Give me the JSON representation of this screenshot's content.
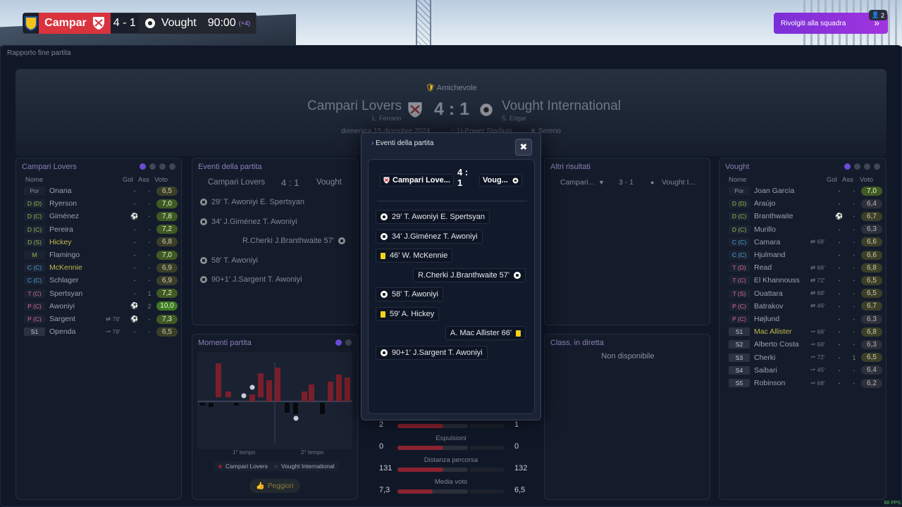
{
  "scorebar": {
    "home": "Campar",
    "score": "4 - 1",
    "away": "Vought",
    "time": "90:00",
    "added": "(+4)"
  },
  "top_button": {
    "label": "Rivolgiti alla squadra",
    "badge": "2"
  },
  "breadcrumb": "Rapporto fine partita",
  "header": {
    "competition": "Amichevole",
    "home_team": "Campari Lovers",
    "home_coach": "L. Ferrario",
    "away_team": "Vought International",
    "away_coach": "S. Edgar",
    "score": "4 : 1",
    "date": "domenica 15 dicembre 2024",
    "stadium": "U-Power Stadium",
    "weather": "Sereno"
  },
  "left_roster": {
    "title": "Campari Lovers",
    "cols": {
      "name": "Nome",
      "gol": "Gol",
      "ass": "Ass",
      "vote": "Voto"
    },
    "players": [
      {
        "pos": "Por",
        "name": "Onana",
        "sub": "",
        "gol": "-",
        "ass": "-",
        "vote": "6,5"
      },
      {
        "pos": "D (D)",
        "name": "Ryerson",
        "sub": "",
        "gol": "-",
        "ass": "-",
        "vote": "7,0"
      },
      {
        "pos": "D (C)",
        "name": "Giménez",
        "sub": "",
        "gol": "⚽",
        "ass": "-",
        "vote": "7,8"
      },
      {
        "pos": "D (C)",
        "name": "Pereira",
        "sub": "",
        "gol": "-",
        "ass": "-",
        "vote": "7,2"
      },
      {
        "pos": "D (S)",
        "name": "Hickey",
        "sub": "",
        "gol": "-",
        "ass": "-",
        "vote": "6,8"
      },
      {
        "pos": "M",
        "name": "Flamingo",
        "sub": "",
        "gol": "-",
        "ass": "-",
        "vote": "7,0"
      },
      {
        "pos": "C (C)",
        "name": "McKennie",
        "sub": "",
        "gol": "-",
        "ass": "-",
        "vote": "6,9"
      },
      {
        "pos": "C (C)",
        "name": "Schlager",
        "sub": "",
        "gol": "-",
        "ass": "-",
        "vote": "6,9"
      },
      {
        "pos": "T (C)",
        "name": "Spertsyan",
        "sub": "",
        "gol": "-",
        "ass": "1",
        "vote": "7,2"
      },
      {
        "pos": "P (C)",
        "name": "Awoniyi",
        "sub": "",
        "gol": "⚽",
        "ass": "2",
        "vote": "10,0"
      },
      {
        "pos": "P (C)",
        "name": "Sargent",
        "sub": "⇄ 78'",
        "gol": "⚽",
        "ass": "-",
        "vote": "7,3"
      },
      {
        "pos": "S1",
        "name": "Openda",
        "sub": "⇀ 78'",
        "gol": "-",
        "ass": "-",
        "vote": "6,5"
      }
    ]
  },
  "right_roster": {
    "title": "Vought",
    "cols": {
      "name": "Nome",
      "gol": "Gol",
      "ass": "Ass",
      "vote": "Voto"
    },
    "players": [
      {
        "pos": "Por",
        "name": "Joan García",
        "sub": "",
        "gol": "-",
        "ass": "-",
        "vote": "7,0"
      },
      {
        "pos": "D (D)",
        "name": "Araújo",
        "sub": "",
        "gol": "-",
        "ass": "-",
        "vote": "6,4"
      },
      {
        "pos": "D (C)",
        "name": "Branthwaite",
        "sub": "",
        "gol": "⚽",
        "ass": "-",
        "vote": "6,7"
      },
      {
        "pos": "D (C)",
        "name": "Murillo",
        "sub": "",
        "gol": "-",
        "ass": "-",
        "vote": "6,3"
      },
      {
        "pos": "C (C)",
        "name": "Camara",
        "sub": "⇄ 68'",
        "gol": "-",
        "ass": "-",
        "vote": "6,6"
      },
      {
        "pos": "C (C)",
        "name": "Hjulmand",
        "sub": "",
        "gol": "-",
        "ass": "-",
        "vote": "6,6"
      },
      {
        "pos": "T (D)",
        "name": "Read",
        "sub": "⇄ 68'",
        "gol": "-",
        "ass": "-",
        "vote": "6,8"
      },
      {
        "pos": "T (C)",
        "name": "El Khannouss",
        "sub": "⇄ 72'",
        "gol": "-",
        "ass": "-",
        "vote": "6,5"
      },
      {
        "pos": "T (S)",
        "name": "Ouattara",
        "sub": "⇄ 68'",
        "gol": "-",
        "ass": "-",
        "vote": "6,5"
      },
      {
        "pos": "P (C)",
        "name": "Batrakov",
        "sub": "⇄ 46'",
        "gol": "-",
        "ass": "-",
        "vote": "6,7"
      },
      {
        "pos": "P (C)",
        "name": "Højlund",
        "sub": "",
        "gol": "-",
        "ass": "-",
        "vote": "6,3"
      },
      {
        "pos": "S1",
        "name": "Mac Allister",
        "sub": "⇀ 68'",
        "gol": "-",
        "ass": "-",
        "vote": "6,8"
      },
      {
        "pos": "S2",
        "name": "Alberto Costa",
        "sub": "⇀ 68'",
        "gol": "-",
        "ass": "-",
        "vote": "6,3"
      },
      {
        "pos": "S3",
        "name": "Cherki",
        "sub": "⇀ 72'",
        "gol": "-",
        "ass": "1",
        "vote": "6,5"
      },
      {
        "pos": "S4",
        "name": "Saibari",
        "sub": "⇀ 45'",
        "gol": "-",
        "ass": "-",
        "vote": "6,4"
      },
      {
        "pos": "S5",
        "name": "Robinson",
        "sub": "⇀ 68'",
        "gol": "-",
        "ass": "-",
        "vote": "6,2"
      }
    ]
  },
  "events_panel": {
    "title": "Eventi della partita",
    "home": "Campari Lovers",
    "score": "4 : 1",
    "away": "Vought",
    "events": [
      {
        "side": "home",
        "text": "29' T. Awoniyi E. Spertsyan"
      },
      {
        "side": "home",
        "text": "34' J.Giménez T. Awoniyi"
      },
      {
        "side": "away",
        "text": "R.Cherki J.Branthwaite 57'"
      },
      {
        "side": "home",
        "text": "58' T. Awoniyi"
      },
      {
        "side": "home",
        "text": "90+1' J.Sargent T. Awoniyi"
      }
    ]
  },
  "moments_panel": {
    "title": "Momenti partita",
    "half1": "1° tempo",
    "half2": "2° tempo",
    "legend_home": "Campari Lovers",
    "legend_away": "Vought International",
    "button": "Peggiori"
  },
  "other_results": {
    "title": "Altri risultati",
    "home": "Campari...",
    "score": "3 - 1",
    "away": "Vought I..."
  },
  "live_table": {
    "title": "Class. in diretta",
    "empty": "Non disponibile"
  },
  "stats": [
    {
      "label": "",
      "home": "2",
      "away": "1",
      "home_frac": 0.65,
      "away_frac": 0.33
    },
    {
      "label": "Espulsioni",
      "home": "0",
      "away": "0",
      "home_frac": 0.65,
      "away_frac": 0
    },
    {
      "label": "Distanza percorsa",
      "home": "131",
      "away": "132",
      "home_frac": 0.65,
      "away_frac": 0.0
    },
    {
      "label": "Media voto",
      "home": "7,3",
      "away": "6,5",
      "home_frac": 0.5,
      "away_frac": 0.0
    }
  ],
  "modal": {
    "title": "Eventi della partita",
    "home": "Campari Love...",
    "score_top": "4 :",
    "score_bottom": "1",
    "away": "Voug...",
    "events": [
      {
        "side": "home",
        "icon": "ball",
        "text": "29' T. Awoniyi E. Spertsyan"
      },
      {
        "side": "home",
        "icon": "ball",
        "text": "34' J.Giménez T. Awoniyi"
      },
      {
        "side": "home",
        "icon": "card",
        "text": "46' W. McKennie"
      },
      {
        "side": "away",
        "icon": "ball",
        "text": "R.Cherki J.Branthwaite 57'"
      },
      {
        "side": "home",
        "icon": "ball",
        "text": "58' T. Awoniyi"
      },
      {
        "side": "home",
        "icon": "card",
        "text": "59' A. Hickey"
      },
      {
        "side": "away",
        "icon": "card",
        "text": "A. Mac Allister 66'"
      },
      {
        "side": "home",
        "icon": "ball",
        "text": "90+1' J.Sargent T. Awoniyi"
      }
    ]
  },
  "fps": "60 FPS",
  "colors": {
    "home": "#d9333d",
    "accent": "#7b2fd6",
    "bar_home": "#8b2230"
  }
}
